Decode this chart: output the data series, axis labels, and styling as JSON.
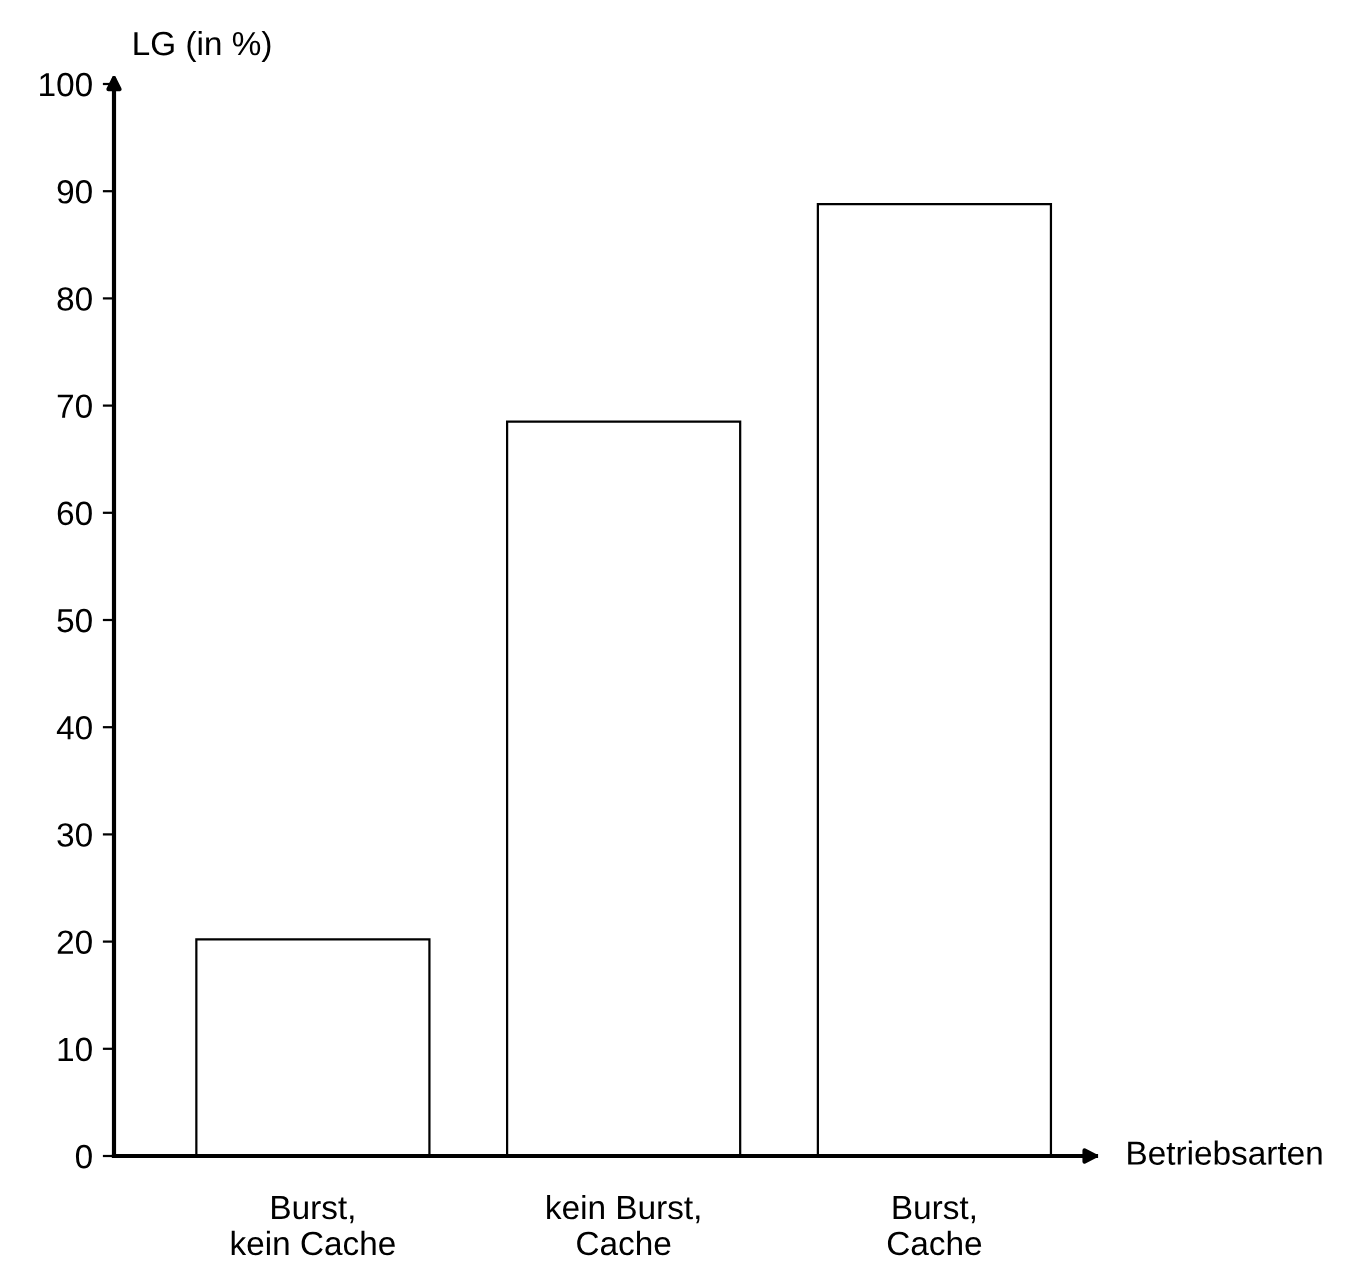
{
  "chart_data": {
    "type": "bar",
    "ylabel": "LG (in %)",
    "xlabel": "Betriebsarten",
    "categories": [
      "Burst,\nkein Cache",
      "kein Burst,\nCache",
      "Burst,\nCache"
    ],
    "values": [
      20.2,
      68.5,
      88.8
    ],
    "color": "#ffffff",
    "ylim": [
      0,
      100
    ],
    "yticks": [
      0,
      10,
      20,
      30,
      40,
      50,
      60,
      70,
      80,
      90,
      100
    ],
    "grid": false,
    "legend": false
  }
}
